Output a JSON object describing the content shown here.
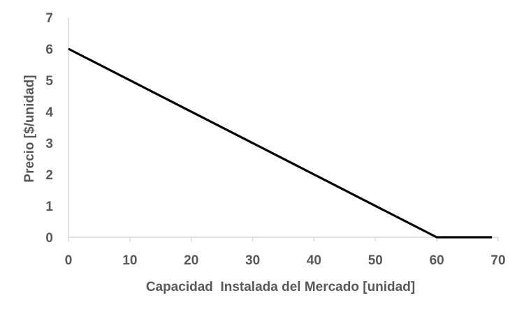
{
  "chart_data": {
    "type": "line",
    "title": "",
    "xlabel": "Capacidad  Instalada del Mercado [unidad]",
    "ylabel": "Precio [$/unidad]",
    "xlim": [
      0,
      70
    ],
    "ylim": [
      0,
      7
    ],
    "x_ticks": [
      "0",
      "10",
      "20",
      "30",
      "40",
      "50",
      "60",
      "70"
    ],
    "y_ticks": [
      "0",
      "1",
      "2",
      "3",
      "4",
      "5",
      "6",
      "7"
    ],
    "grid": false,
    "legend": "none",
    "series": [
      {
        "color": "#000000",
        "points": [
          [
            0,
            6
          ],
          [
            60,
            0
          ],
          [
            69,
            0
          ]
        ]
      }
    ],
    "colors": {
      "line": "#000000",
      "axis": "#d9d9d9",
      "text": "#595959"
    }
  }
}
